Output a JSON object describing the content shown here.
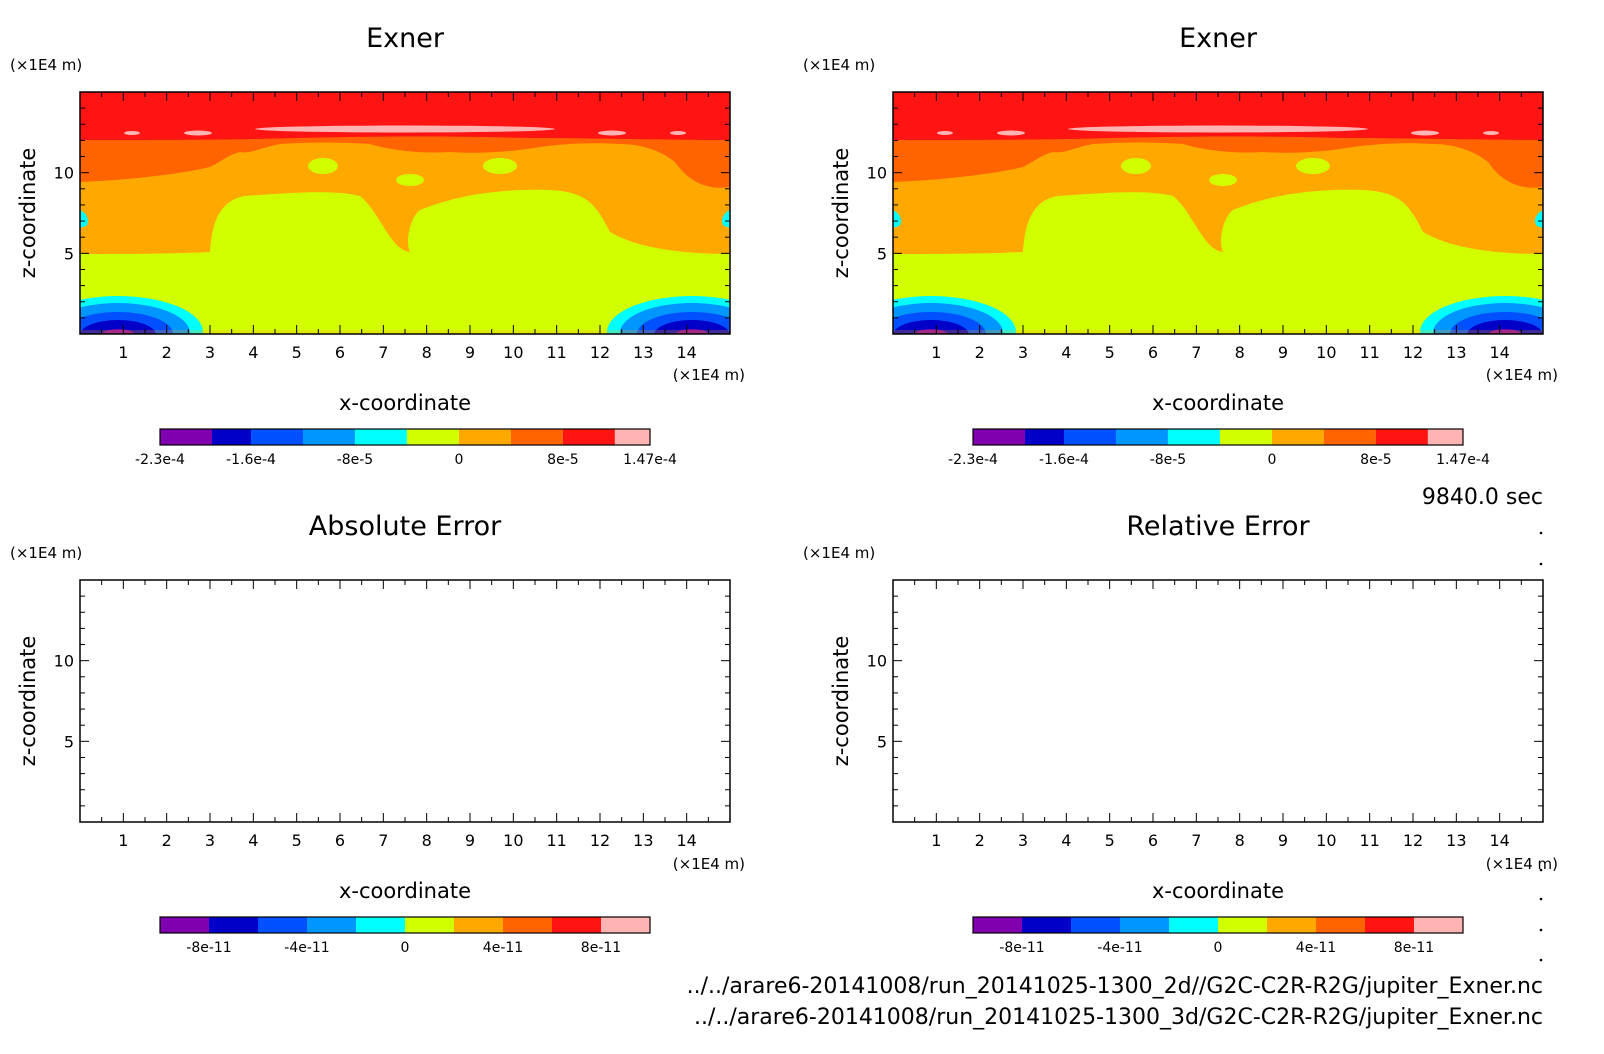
{
  "figure": {
    "time_label": "9840.0 sec",
    "file_lines": [
      "../../arare6-20141008/run_20141025-1300_2d//G2C-C2R-R2G/jupiter_Exner.nc",
      "../../arare6-20141008/run_20141025-1300_3d/G2C-C2R-R2G/jupiter_Exner.nc"
    ]
  },
  "colors": {
    "level_fills_bottom_to_top": [
      "#8000b0",
      "#0000c8",
      "#0050ff",
      "#0096ff",
      "#00ffff",
      "#d2ff00",
      "#ffa800",
      "#ff6400",
      "#ff1414",
      "#ffb4b4"
    ]
  },
  "chart_data": [
    {
      "type": "contour",
      "title": "Exner",
      "xlabel": "x-coordinate",
      "ylabel": "z-coordinate",
      "x_unit": "(×1E4 m)",
      "y_unit": "(×1E4 m)",
      "xlim": [
        0,
        15
      ],
      "ylim": [
        0,
        15
      ],
      "x_ticks": [
        1,
        2,
        3,
        4,
        5,
        6,
        7,
        8,
        9,
        10,
        11,
        12,
        13,
        14
      ],
      "y_ticks": [
        5,
        10
      ],
      "filled": true,
      "colorbar": {
        "min": -0.00023,
        "max": 0.000147,
        "labels": [
          "-2.3e-4",
          "-1.6e-4",
          "-8e-5",
          "0",
          "8e-5",
          "1.47e-4"
        ],
        "label_values": [
          -0.00023,
          -0.00016,
          -8e-05,
          0,
          8e-05,
          0.000147
        ],
        "boundaries": [
          -0.00023,
          -0.00019,
          -0.00016,
          -0.00012,
          -8e-05,
          -4e-05,
          0,
          4e-05,
          8e-05,
          0.00012,
          0.000147
        ]
      }
    },
    {
      "type": "contour",
      "title": "Exner",
      "xlabel": "x-coordinate",
      "ylabel": "z-coordinate",
      "x_unit": "(×1E4 m)",
      "y_unit": "(×1E4 m)",
      "xlim": [
        0,
        15
      ],
      "ylim": [
        0,
        15
      ],
      "x_ticks": [
        1,
        2,
        3,
        4,
        5,
        6,
        7,
        8,
        9,
        10,
        11,
        12,
        13,
        14
      ],
      "y_ticks": [
        5,
        10
      ],
      "filled": true,
      "colorbar": {
        "min": -0.00023,
        "max": 0.000147,
        "labels": [
          "-2.3e-4",
          "-1.6e-4",
          "-8e-5",
          "0",
          "8e-5",
          "1.47e-4"
        ],
        "label_values": [
          -0.00023,
          -0.00016,
          -8e-05,
          0,
          8e-05,
          0.000147
        ],
        "boundaries": [
          -0.00023,
          -0.00019,
          -0.00016,
          -0.00012,
          -8e-05,
          -4e-05,
          0,
          4e-05,
          8e-05,
          0.00012,
          0.000147
        ]
      }
    },
    {
      "type": "contour",
      "title": "Absolute Error",
      "xlabel": "x-coordinate",
      "ylabel": "z-coordinate",
      "x_unit": "(×1E4 m)",
      "y_unit": "(×1E4 m)",
      "xlim": [
        0,
        15
      ],
      "ylim": [
        0,
        15
      ],
      "x_ticks": [
        1,
        2,
        3,
        4,
        5,
        6,
        7,
        8,
        9,
        10,
        11,
        12,
        13,
        14
      ],
      "y_ticks": [
        5,
        10
      ],
      "filled": false,
      "colorbar": {
        "min": -1e-10,
        "max": 1e-10,
        "labels": [
          "-8e-11",
          "-4e-11",
          "0",
          "4e-11",
          "8e-11"
        ],
        "label_values": [
          -8e-11,
          -4e-11,
          0,
          4e-11,
          8e-11
        ],
        "boundaries": [
          -1e-10,
          -8e-11,
          -6e-11,
          -4e-11,
          -2e-11,
          0,
          2e-11,
          4e-11,
          6e-11,
          8e-11,
          1e-10
        ]
      }
    },
    {
      "type": "contour",
      "title": "Relative Error",
      "xlabel": "x-coordinate",
      "ylabel": "z-coordinate",
      "x_unit": "(×1E4 m)",
      "y_unit": "(×1E4 m)",
      "xlim": [
        0,
        15
      ],
      "ylim": [
        0,
        15
      ],
      "x_ticks": [
        1,
        2,
        3,
        4,
        5,
        6,
        7,
        8,
        9,
        10,
        11,
        12,
        13,
        14
      ],
      "y_ticks": [
        5,
        10
      ],
      "filled": false,
      "colorbar": {
        "min": -1e-10,
        "max": 1e-10,
        "labels": [
          "-8e-11",
          "-4e-11",
          "0",
          "4e-11",
          "8e-11"
        ],
        "label_values": [
          -8e-11,
          -4e-11,
          0,
          4e-11,
          8e-11
        ],
        "boundaries": [
          -1e-10,
          -8e-11,
          -6e-11,
          -4e-11,
          -2e-11,
          0,
          2e-11,
          4e-11,
          6e-11,
          8e-11,
          1e-10
        ]
      }
    }
  ]
}
